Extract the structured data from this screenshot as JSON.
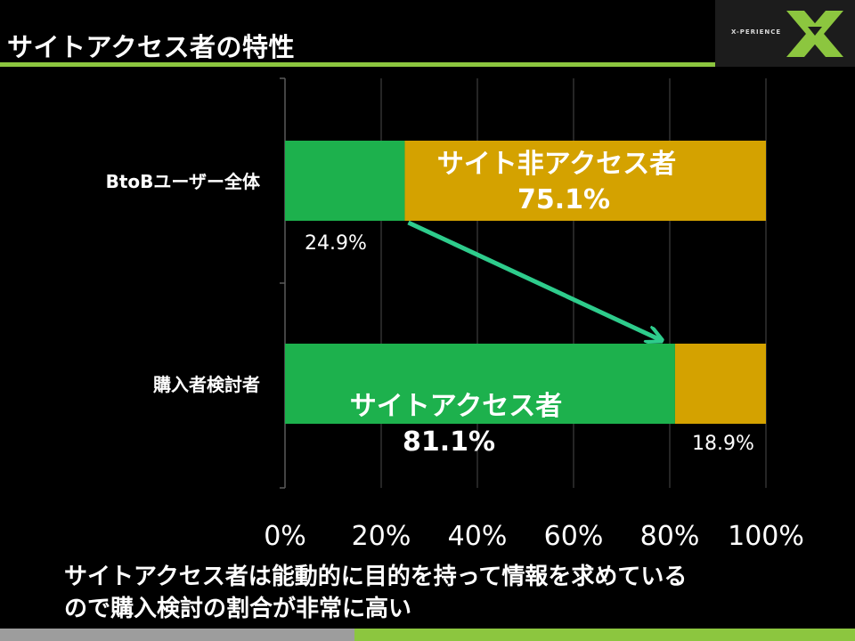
{
  "slide": {
    "title": "サイトアクセス者の特性",
    "logo_text": "X-PERIENCE",
    "footer_line1": "サイトアクセス者は能動的に目的を持って情報を求めている",
    "footer_line2": "ので購入検討の割合が非常に高い"
  },
  "colors": {
    "accent_green": "#8cc63f",
    "access": "#1db14d",
    "non_access": "#d4a200",
    "arrow": "#2ecc8c"
  },
  "chart_data": {
    "type": "bar",
    "orientation": "horizontal",
    "stacked": true,
    "categories": [
      "BtoBユーザー全体",
      "購入者検討者"
    ],
    "series": [
      {
        "name": "サイトアクセス者",
        "values": [
          24.9,
          81.1
        ],
        "color": "#1db14d"
      },
      {
        "name": "サイト非アクセス者",
        "values": [
          75.1,
          18.9
        ],
        "color": "#d4a200"
      }
    ],
    "xlim": [
      0,
      100
    ],
    "x_ticks": [
      "0%",
      "20%",
      "40%",
      "60%",
      "80%",
      "100%"
    ],
    "grid": true,
    "data_labels": [
      "24.9%",
      "81.1%",
      "18.9%",
      "75.1%"
    ],
    "annotations": {
      "non_access_label": "サイト非アクセス者",
      "non_access_value": "75.1%",
      "access_label": "サイトアクセス者",
      "access_value": "81.1%",
      "bottom_small_value": "24.9%",
      "right_small_value": "18.9%"
    },
    "arrow": "from end of 24.9% segment to end of 81.1% segment"
  }
}
